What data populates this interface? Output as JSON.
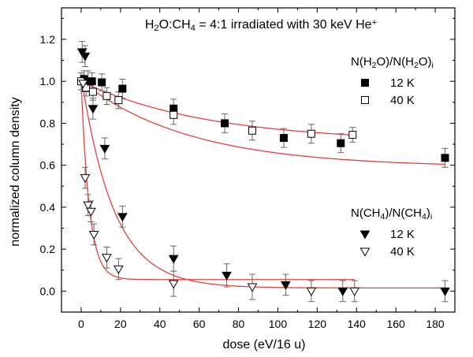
{
  "chart_data": {
    "type": "scatter",
    "title_parts": [
      {
        "t": "H",
        "s": "n"
      },
      {
        "t": "2",
        "s": "sub"
      },
      {
        "t": "O:CH",
        "s": "n"
      },
      {
        "t": "4",
        "s": "sub"
      },
      {
        "t": " = 4:1 irradiated with 30 keV He",
        "s": "n"
      },
      {
        "t": "+",
        "s": "sup"
      }
    ],
    "xlabel": "dose (eV/16 u)",
    "ylabel": "normalized column density",
    "xlim": [
      -10,
      190
    ],
    "ylim": [
      -0.1,
      1.35
    ],
    "xticks": [
      0,
      20,
      40,
      60,
      80,
      100,
      120,
      140,
      160,
      180
    ],
    "xtick_labels": [
      "0",
      "20",
      "40",
      "60",
      "80",
      "100",
      "120",
      "140",
      "160",
      "180"
    ],
    "yticks": [
      0.0,
      0.2,
      0.4,
      0.6,
      0.8,
      1.0,
      1.2
    ],
    "ytick_labels": [
      "0.0",
      "0.2",
      "0.4",
      "0.6",
      "0.8",
      "1.0",
      "1.2"
    ],
    "colors": {
      "fit": "#e8403a",
      "axis": "#000000",
      "marker": "#000000"
    },
    "legend_groups": [
      {
        "title_parts": [
          {
            "t": "N(H",
            "s": "n"
          },
          {
            "t": "2",
            "s": "sub"
          },
          {
            "t": "O)/N(H",
            "s": "n"
          },
          {
            "t": "2",
            "s": "sub"
          },
          {
            "t": "O)",
            "s": "n"
          },
          {
            "t": "i",
            "s": "sub"
          }
        ],
        "entries": [
          {
            "marker": "square-filled",
            "label": "12 K"
          },
          {
            "marker": "square-open",
            "label": "40 K"
          }
        ]
      },
      {
        "title_parts": [
          {
            "t": "N(CH",
            "s": "n"
          },
          {
            "t": "4",
            "s": "sub"
          },
          {
            "t": ")/N(CH",
            "s": "n"
          },
          {
            "t": "4",
            "s": "sub"
          },
          {
            "t": ")",
            "s": "n"
          },
          {
            "t": "i",
            "s": "sub"
          }
        ],
        "entries": [
          {
            "marker": "triangle-down-filled",
            "label": "12 K"
          },
          {
            "marker": "triangle-down-open",
            "label": "40 K"
          }
        ]
      }
    ],
    "series": [
      {
        "name": "N(H2O)/N(H2O)i 12 K",
        "marker": "square-filled",
        "points": [
          [
            1.5,
            1.01,
            0.04
          ],
          [
            5.5,
            1.0,
            0.04
          ],
          [
            10.5,
            0.995,
            0.04
          ],
          [
            21,
            0.965,
            0.045
          ],
          [
            47,
            0.87,
            0.045
          ],
          [
            73,
            0.8,
            0.045
          ],
          [
            103,
            0.73,
            0.045
          ],
          [
            132,
            0.705,
            0.045
          ],
          [
            185,
            0.635,
            0.045
          ]
        ],
        "fit": {
          "kind": "exp",
          "a": 0.41,
          "b": 0.018,
          "c": 0.59
        }
      },
      {
        "name": "N(H2O)/N(H2O)i 40 K",
        "marker": "square-open",
        "points": [
          [
            0,
            1.0,
            0.04
          ],
          [
            2.5,
            0.97,
            0.04
          ],
          [
            6,
            0.95,
            0.04
          ],
          [
            13,
            0.93,
            0.04
          ],
          [
            19,
            0.91,
            0.04
          ],
          [
            47,
            0.84,
            0.045
          ],
          [
            87,
            0.765,
            0.045
          ],
          [
            117,
            0.75,
            0.045
          ],
          [
            138,
            0.745,
            0.035
          ]
        ],
        "fit": {
          "kind": "exp",
          "a": 0.29,
          "b": 0.0155,
          "c": 0.71,
          "xmax": 139
        }
      },
      {
        "name": "N(CH4)/N(CH4)i 12 K",
        "marker": "triangle-down-filled",
        "points": [
          [
            0.5,
            1.14,
            0.05
          ],
          [
            2,
            1.12,
            0.05
          ],
          [
            3.5,
            1.0,
            0.05
          ],
          [
            6,
            0.87,
            0.05
          ],
          [
            12,
            0.68,
            0.05
          ],
          [
            21,
            0.355,
            0.05
          ],
          [
            47,
            0.155,
            0.06
          ],
          [
            74,
            0.075,
            0.055
          ],
          [
            104,
            0.03,
            0.05
          ],
          [
            133,
            0.0,
            0.05
          ],
          [
            185,
            0.0,
            0.05
          ]
        ],
        "fit": {
          "kind": "exp",
          "a": 1.01,
          "b": 0.06,
          "c": 0.015
        }
      },
      {
        "name": "N(CH4)/N(CH4)i 40 K",
        "marker": "triangle-down-open",
        "points": [
          [
            1,
            0.99,
            0.04
          ],
          [
            2,
            0.54,
            0.05
          ],
          [
            3.5,
            0.41,
            0.05
          ],
          [
            5,
            0.38,
            0.05
          ],
          [
            6.5,
            0.27,
            0.05
          ],
          [
            13,
            0.16,
            0.05
          ],
          [
            19,
            0.105,
            0.05
          ],
          [
            47,
            0.035,
            0.06
          ],
          [
            87,
            0.02,
            0.06
          ],
          [
            117,
            0.0,
            0.05
          ],
          [
            139,
            0.0,
            0.05
          ]
        ],
        "fit": {
          "kind": "exp",
          "a": 0.94,
          "b": 0.24,
          "c": 0.055,
          "xmax": 139
        }
      }
    ]
  }
}
